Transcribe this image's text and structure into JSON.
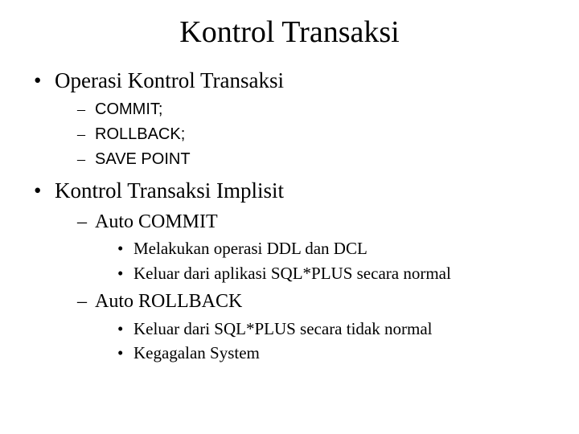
{
  "title": "Kontrol Transaksi",
  "bullets": [
    {
      "text": "Operasi Kontrol Transaksi",
      "small": true,
      "sub": [
        {
          "text": "COMMIT;"
        },
        {
          "text": "ROLLBACK;"
        },
        {
          "text": "SAVE POINT"
        }
      ]
    },
    {
      "text": "Kontrol Transaksi Implisit",
      "sub": [
        {
          "text": "Auto COMMIT",
          "sub": [
            {
              "text": "Melakukan operasi DDL dan DCL"
            },
            {
              "text": "Keluar dari aplikasi SQL*PLUS secara normal"
            }
          ]
        },
        {
          "text": "Auto ROLLBACK",
          "sub": [
            {
              "text": "Keluar dari SQL*PLUS secara tidak normal"
            },
            {
              "text": "Kegagalan System"
            }
          ]
        }
      ]
    }
  ],
  "colors": {
    "background": "#ffffff",
    "text": "#000000"
  }
}
